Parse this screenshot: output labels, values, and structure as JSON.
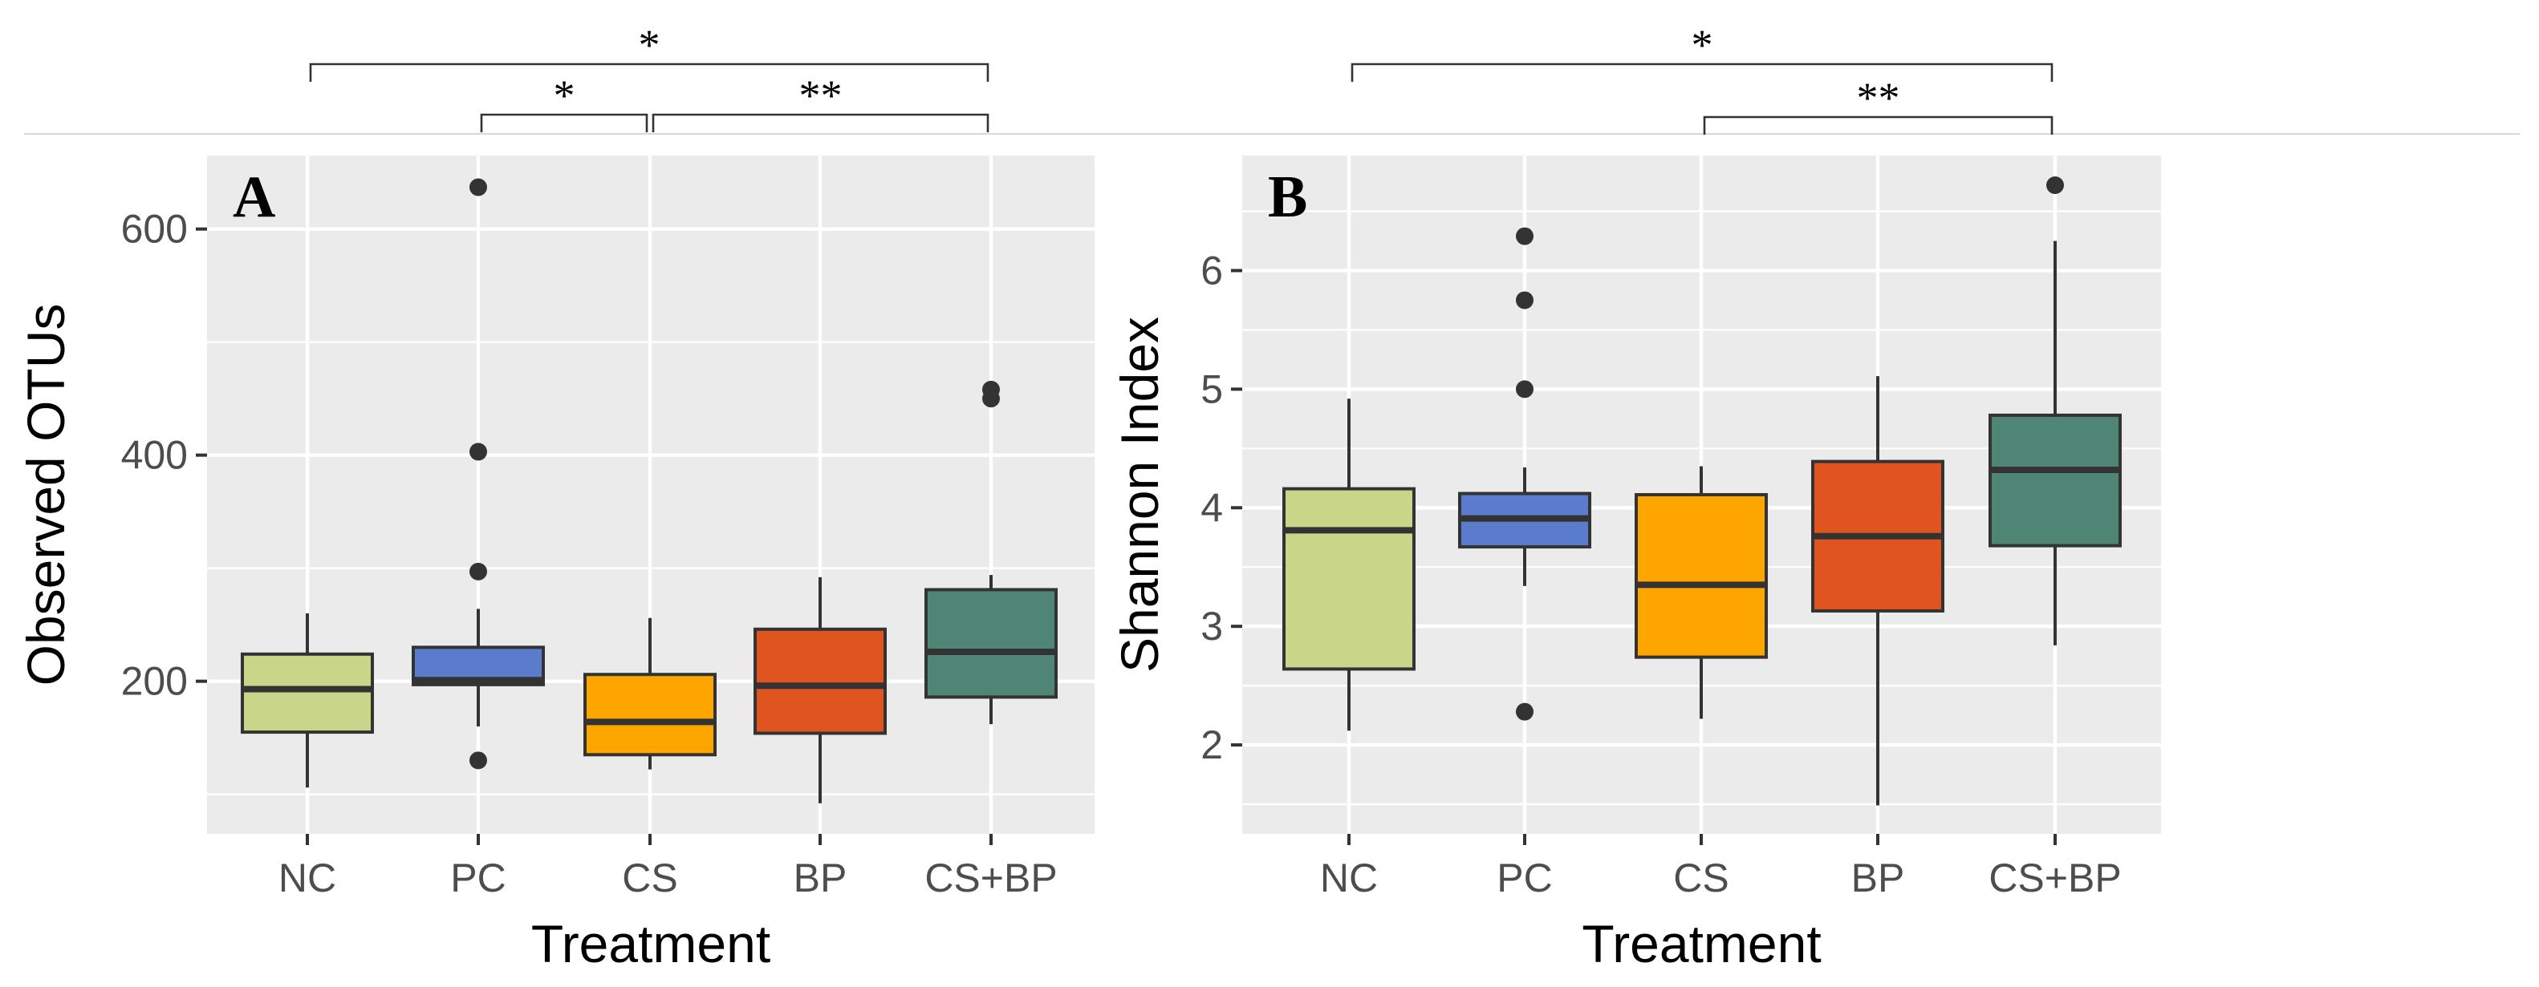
{
  "figure": {
    "significance_stars": {
      "one": "*",
      "two": "**"
    }
  },
  "chart_data": [
    {
      "id": "A",
      "type": "boxplot",
      "panel_label": "A",
      "xlabel": "Treatment",
      "ylabel": "Observed OTUs",
      "categories": [
        "NC",
        "PC",
        "CS",
        "BP",
        "CS+BP"
      ],
      "ylim": [
        65,
        665
      ],
      "yticks": [
        200,
        400,
        600
      ],
      "yticks_minor": [
        100,
        300,
        500
      ],
      "grid": true,
      "colors": [
        "#c9d68a",
        "#5b7ccc",
        "#ffa500",
        "#e0541f",
        "#4e8574"
      ],
      "boxes": [
        {
          "category": "NC",
          "whisker_low": 106,
          "q1": 155,
          "median": 193,
          "q3": 224,
          "whisker_high": 260,
          "outliers": []
        },
        {
          "category": "PC",
          "whisker_low": 160,
          "q1": 197,
          "median": 201,
          "q3": 230,
          "whisker_high": 264,
          "outliers": [
            130,
            297,
            403,
            637
          ]
        },
        {
          "category": "CS",
          "whisker_low": 122,
          "q1": 135,
          "median": 164,
          "q3": 206,
          "whisker_high": 256,
          "outliers": []
        },
        {
          "category": "BP",
          "whisker_low": 92,
          "q1": 154,
          "median": 196,
          "q3": 246,
          "whisker_high": 292,
          "outliers": []
        },
        {
          "category": "CS+BP",
          "whisker_low": 162,
          "q1": 186,
          "median": 226,
          "q3": 281,
          "whisker_high": 294,
          "outliers": [
            450,
            458
          ]
        }
      ],
      "significance": [
        {
          "from": "NC",
          "to": "CS+BP",
          "label": "*",
          "level": 2
        },
        {
          "from": "PC",
          "to": "CS",
          "label": "*",
          "level": 1
        },
        {
          "from": "CS",
          "to": "CS+BP",
          "label": "**",
          "level": 1
        }
      ]
    },
    {
      "id": "B",
      "type": "boxplot",
      "panel_label": "B",
      "xlabel": "Treatment",
      "ylabel": "Shannon Index",
      "categories": [
        "NC",
        "PC",
        "CS",
        "BP",
        "CS+BP"
      ],
      "ylim": [
        1.25,
        6.97
      ],
      "yticks": [
        2,
        3,
        4,
        5,
        6
      ],
      "yticks_minor": [
        1.5,
        2.5,
        3.5,
        4.5,
        5.5,
        6.5
      ],
      "grid": true,
      "colors": [
        "#c9d68a",
        "#5b7ccc",
        "#ffa500",
        "#e0541f",
        "#4e8574"
      ],
      "boxes": [
        {
          "category": "NC",
          "whisker_low": 2.12,
          "q1": 2.64,
          "median": 3.81,
          "q3": 4.16,
          "whisker_high": 4.92,
          "outliers": []
        },
        {
          "category": "PC",
          "whisker_low": 3.34,
          "q1": 3.67,
          "median": 3.91,
          "q3": 4.12,
          "whisker_high": 4.34,
          "outliers": [
            2.28,
            5.0,
            5.75,
            6.29
          ]
        },
        {
          "category": "CS",
          "whisker_low": 2.22,
          "q1": 2.74,
          "median": 3.35,
          "q3": 4.11,
          "whisker_high": 4.35,
          "outliers": []
        },
        {
          "category": "BP",
          "whisker_low": 1.49,
          "q1": 3.13,
          "median": 3.76,
          "q3": 4.39,
          "whisker_high": 5.11,
          "outliers": []
        },
        {
          "category": "CS+BP",
          "whisker_low": 2.84,
          "q1": 3.68,
          "median": 4.32,
          "q3": 4.78,
          "whisker_high": 6.25,
          "outliers": [
            6.72
          ]
        }
      ],
      "significance": [
        {
          "from": "NC",
          "to": "CS+BP",
          "label": "*",
          "level": 2
        },
        {
          "from": "CS",
          "to": "CS+BP",
          "label": "**",
          "level": 1
        }
      ]
    }
  ]
}
